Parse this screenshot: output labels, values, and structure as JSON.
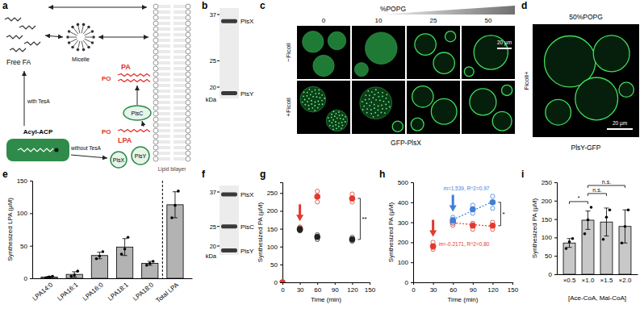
{
  "figure": {
    "panel_labels": [
      "a",
      "b",
      "c",
      "d",
      "e",
      "f",
      "g",
      "h",
      "i"
    ],
    "diagram": {
      "free_fa": "Free FA",
      "micelle": "Micelle",
      "with_tesa": "with TesA",
      "without_tesa": "without TesA",
      "acyl_acp": "Acyl-ACP",
      "pa": "PA",
      "lpa": "LPA",
      "plsc": "PlsC",
      "plsy": "PlsY",
      "plsx": "PlsX",
      "bilayer": "Lipid bilayer",
      "phosphate": "PO"
    },
    "blot_b": {
      "markers": [
        37,
        25,
        20
      ],
      "unit": "kDa",
      "bands": [
        {
          "label": "PlsX",
          "kda": 35
        },
        {
          "label": "PlsY",
          "kda": 19
        }
      ]
    },
    "micrographs_c": {
      "gradient_label": "%POPG",
      "columns": [
        0,
        10,
        25,
        50
      ],
      "rows": [
        "−Ficoll",
        "+Ficoll"
      ],
      "scale_bar": "20 µm",
      "protein": "GFP-PlsX"
    },
    "micrograph_d": {
      "condition": "50%POPG",
      "row": "Ficoll+",
      "scale_bar": "20 µm",
      "protein": "PlsY-GFP"
    },
    "blot_f": {
      "markers": [
        37,
        25,
        20
      ],
      "unit": "kDa",
      "bands": [
        {
          "label": "PlsX",
          "kda": 36
        },
        {
          "label": "PlsC",
          "kda": 25
        },
        {
          "label": "PlsY",
          "kda": 19
        }
      ]
    }
  },
  "chart_data": [
    {
      "type": "bar",
      "y_label": "Synthesized LPA (μM)",
      "categories": [
        "LPA14:0",
        "LPA16:1",
        "LPA16:0",
        "LPA18:1",
        "LPA18:0",
        "Total LPA"
      ],
      "values": [
        2,
        6,
        35,
        48,
        23,
        113
      ],
      "errors": [
        1,
        4,
        5,
        13,
        3,
        20
      ],
      "points": [
        [
          1,
          2,
          3
        ],
        [
          3,
          5,
          11
        ],
        [
          30,
          34,
          41
        ],
        [
          37,
          45,
          63
        ],
        [
          20,
          23,
          26
        ],
        [
          93,
          112,
          134
        ]
      ],
      "color": "#b3b3b3",
      "ylim": [
        0,
        150
      ],
      "yticks": [
        0,
        50,
        100,
        150
      ]
    },
    {
      "type": "scatter",
      "x_label": "Time (min)",
      "y_label": "Synthesized PA (μM)",
      "xlim": [
        0,
        150
      ],
      "xticks": [
        0,
        30,
        60,
        90,
        120,
        150
      ],
      "ylim": [
        0,
        280
      ],
      "yticks": [
        0,
        50,
        100,
        150,
        200,
        250
      ],
      "series": [
        {
          "color": "#e23a2e",
          "x": [
            0,
            30,
            60,
            120
          ],
          "values": [
            0,
            150,
            240,
            235
          ],
          "points": [
            [
              0,
              0,
              0
            ],
            [
              145,
              150,
              155
            ],
            [
              225,
              240,
              255
            ],
            [
              225,
              233,
              247
            ]
          ]
        },
        {
          "color": "#222222",
          "x": [
            30,
            60,
            120
          ],
          "values": [
            148,
            127,
            120
          ],
          "points": [
            [
              144,
              148,
              152
            ],
            [
              120,
              128,
              133
            ],
            [
              115,
              120,
              126
            ]
          ]
        }
      ],
      "arrows": [
        {
          "x": 30,
          "color": "#e23a2e"
        }
      ],
      "significance": [
        {
          "text": "**",
          "x": 120,
          "series": [
            0,
            1
          ]
        }
      ]
    },
    {
      "type": "scatter",
      "x_label": "Time (min)",
      "y_label": "Synthesized PA (μM)",
      "xlim": [
        0,
        150
      ],
      "xticks": [
        0,
        30,
        60,
        90,
        120,
        150
      ],
      "ylim": [
        0,
        500
      ],
      "yticks": [
        0,
        100,
        200,
        300,
        400,
        500
      ],
      "series": [
        {
          "color": "#e23a2e",
          "x": [
            30,
            60,
            90,
            120
          ],
          "values": [
            180,
            300,
            283,
            283
          ],
          "points": [
            [
              165,
              175,
              200
            ],
            [
              285,
              300,
              315
            ],
            [
              265,
              290,
              295
            ],
            [
              265,
              285,
              300
            ]
          ]
        },
        {
          "color": "#3f7fd8",
          "x": [
            60,
            90,
            120
          ],
          "values": [
            310,
            365,
            400
          ],
          "points": [
            [
              295,
              310,
              325
            ],
            [
              345,
              365,
              385
            ],
            [
              370,
              400,
              430
            ]
          ]
        }
      ],
      "arrows": [
        {
          "x": 30,
          "color": "#e23a2e"
        },
        {
          "x": 60,
          "color": "#3f7fd8"
        }
      ],
      "fits": [
        {
          "series": 1,
          "text": "m=1.539, R^2=0.97",
          "range": [
            60,
            120
          ]
        },
        {
          "series": 0,
          "text": "m=-0.2171, R^2=0.80",
          "range": [
            60,
            120
          ]
        }
      ],
      "significance": [
        {
          "text": "*",
          "x": 120,
          "series": [
            1,
            0
          ]
        }
      ]
    },
    {
      "type": "bar",
      "x_label": "[Ace-CoA, Mal-CoA]",
      "y_label": "Synthesized PA (μM)",
      "categories": [
        "×0.5",
        "×1.0",
        "×1.5",
        "×2.0"
      ],
      "values": [
        85,
        147,
        142,
        130
      ],
      "errors": [
        12,
        25,
        38,
        45
      ],
      "points": [
        [
          70,
          88,
          97
        ],
        [
          110,
          148,
          182
        ],
        [
          95,
          155,
          175
        ],
        [
          85,
          130,
          175
        ]
      ],
      "color": "#c8c8c8",
      "ylim": [
        0,
        250
      ],
      "yticks": [
        0,
        50,
        100,
        150,
        200,
        250
      ],
      "significance": [
        {
          "from": 0,
          "to": 1,
          "text": "*"
        },
        {
          "from": 1,
          "to": 2,
          "text": "n.s."
        },
        {
          "from": 1,
          "to": 3,
          "text": "n.s."
        }
      ]
    }
  ]
}
